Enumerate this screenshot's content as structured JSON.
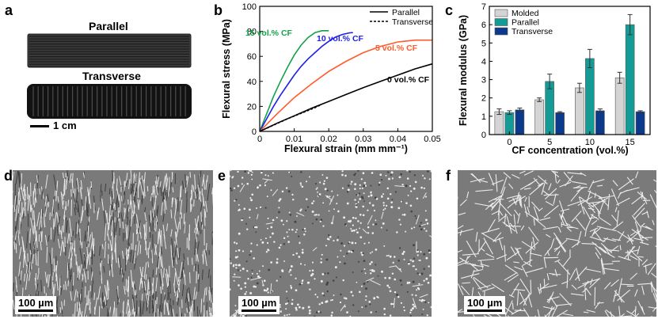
{
  "panels": {
    "a": {
      "letter": "a",
      "top_label": "Parallel",
      "bottom_label": "Transverse",
      "scale_bar": "1 cm"
    },
    "b": {
      "letter": "b",
      "curve_labels": [
        "15 vol.% CF",
        "10 vol.% CF",
        "5 vol.% CF",
        "0 vol.% CF"
      ],
      "curve_colors": [
        "#13a24a",
        "#1f1fe6",
        "#ff5a2a",
        "#000000"
      ]
    },
    "c": {
      "letter": "c",
      "colors": {
        "Molded": "#d4d4d4",
        "Parallel": "#149b96",
        "Transverse": "#0b3a8c"
      }
    },
    "d": {
      "letter": "d",
      "scale_bar": "100 µm"
    },
    "e": {
      "letter": "e",
      "scale_bar": "100 µm"
    },
    "f": {
      "letter": "f",
      "scale_bar": "100 µm"
    }
  },
  "chart_data": [
    {
      "type": "line",
      "xlabel": "Flexural strain (mm mm⁻¹)",
      "ylabel": "Flexural stress (MPa)",
      "xlim": [
        0,
        0.05
      ],
      "ylim": [
        0,
        100
      ],
      "xticks": [
        "0",
        "0.01",
        "0.02",
        "0.03",
        "0.04",
        "0.05"
      ],
      "yticks": [
        "0",
        "20",
        "40",
        "60",
        "80",
        "100"
      ],
      "legend": [
        {
          "name": "Parallel",
          "style": "solid"
        },
        {
          "name": "Transverse",
          "style": "dashed"
        }
      ],
      "legend_position": "top-right",
      "series": [
        {
          "name": "15 vol.% CF",
          "style": "solid",
          "color": "#13a24a",
          "x": [
            0,
            0.002,
            0.004,
            0.006,
            0.008,
            0.01,
            0.012,
            0.014,
            0.016,
            0.018,
            0.02
          ],
          "y": [
            0,
            14,
            28,
            40,
            51,
            61,
            69,
            75,
            79,
            80.5,
            80.5
          ]
        },
        {
          "name": "10 vol.% CF",
          "style": "solid",
          "color": "#1f1fe6",
          "x": [
            0,
            0.002,
            0.004,
            0.006,
            0.008,
            0.01,
            0.012,
            0.014,
            0.016,
            0.018,
            0.02,
            0.022,
            0.024,
            0.026,
            0.027
          ],
          "y": [
            0,
            10,
            20,
            29,
            37,
            45,
            52,
            58,
            63,
            68,
            72,
            75.5,
            77.5,
            78.8,
            79
          ]
        },
        {
          "name": "5 vol.% CF",
          "style": "solid",
          "color": "#ff5a2a",
          "x": [
            0,
            0.005,
            0.01,
            0.015,
            0.02,
            0.025,
            0.03,
            0.035,
            0.04,
            0.045,
            0.05
          ],
          "y": [
            0,
            14,
            27,
            38,
            48,
            56,
            63,
            68,
            71.5,
            73,
            73
          ]
        },
        {
          "name": "0 vol.% CF",
          "style": "solid",
          "color": "#000000",
          "x": [
            0,
            0.005,
            0.01,
            0.015,
            0.02,
            0.025,
            0.03,
            0.035,
            0.04,
            0.045,
            0.05
          ],
          "y": [
            0,
            6.5,
            12.5,
            18.5,
            24,
            29.5,
            35,
            40,
            45,
            50,
            54
          ]
        },
        {
          "name": "Transverse",
          "style": "dashed",
          "color": "#000000",
          "x": [
            0,
            0.004,
            0.008,
            0.012,
            0.016,
            0.0175
          ],
          "y": [
            0,
            5,
            10,
            14.5,
            19,
            21
          ]
        }
      ]
    },
    {
      "type": "bar",
      "xlabel": "CF concentration (vol.%)",
      "ylabel": "Flexural modulus (GPa)",
      "categories": [
        "0",
        "5",
        "10",
        "15"
      ],
      "ylim": [
        0,
        7
      ],
      "yticks": [
        "0",
        "1",
        "2",
        "3",
        "4",
        "5",
        "6",
        "7"
      ],
      "legend_position": "top-left",
      "series": [
        {
          "name": "Molded",
          "values": [
            1.25,
            1.9,
            2.55,
            3.1
          ],
          "errors": [
            0.15,
            0.1,
            0.25,
            0.3
          ]
        },
        {
          "name": "Parallel",
          "values": [
            1.2,
            2.9,
            4.15,
            6.0
          ],
          "errors": [
            0.1,
            0.4,
            0.5,
            0.55
          ]
        },
        {
          "name": "Transverse",
          "values": [
            1.35,
            1.2,
            1.3,
            1.25
          ],
          "errors": [
            0.1,
            0.05,
            0.1,
            0.05
          ]
        }
      ]
    }
  ]
}
